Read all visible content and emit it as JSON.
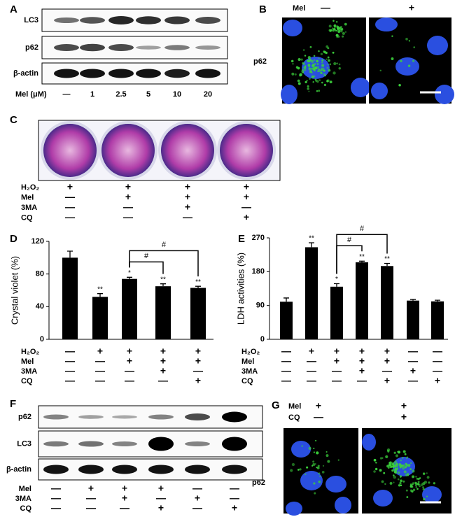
{
  "panel_labels": [
    "A",
    "B",
    "C",
    "D",
    "E",
    "F",
    "G"
  ],
  "panel_a": {
    "blots": [
      "LC3",
      "p62",
      "β-actin"
    ],
    "treatment": "Mel (μM)",
    "doses": [
      "—",
      "1",
      "2.5",
      "5",
      "10",
      "20"
    ]
  },
  "panel_b": {
    "treatment": "Mel",
    "signs": [
      "—",
      "+"
    ],
    "stain": "p62"
  },
  "panel_c": {
    "treatments": [
      {
        "name": "H₂O₂",
        "signs": [
          "+",
          "+",
          "+",
          "+"
        ]
      },
      {
        "name": "Mel",
        "signs": [
          "—",
          "+",
          "+",
          "+"
        ]
      },
      {
        "name": "3MA",
        "signs": [
          "—",
          "—",
          "+",
          "—"
        ]
      },
      {
        "name": "CQ",
        "signs": [
          "—",
          "—",
          "—",
          "+"
        ]
      }
    ]
  },
  "chart_data": [
    {
      "type": "bar",
      "y_label": "Crystal violet (%)",
      "color": "#000000",
      "values": [
        100,
        52,
        74,
        65,
        63
      ],
      "errors": [
        8,
        4,
        2,
        3,
        2
      ],
      "significance": [
        null,
        "**",
        "*",
        "**",
        "**"
      ],
      "brackets": [
        {
          "label": "#",
          "bars": [
            2,
            3
          ]
        },
        {
          "label": "#",
          "bars": [
            2,
            4
          ]
        }
      ],
      "ylim": [
        0,
        120
      ],
      "yticks": [
        0,
        40,
        80,
        120
      ],
      "treatments": [
        {
          "name": "H₂O₂",
          "signs": [
            "—",
            "+",
            "+",
            "+",
            "+"
          ]
        },
        {
          "name": "Mel",
          "signs": [
            "—",
            "—",
            "+",
            "+",
            "+"
          ]
        },
        {
          "name": "3MA",
          "signs": [
            "—",
            "—",
            "—",
            "+",
            "—"
          ]
        },
        {
          "name": "CQ",
          "signs": [
            "—",
            "—",
            "—",
            "—",
            "+"
          ]
        }
      ]
    },
    {
      "type": "bar",
      "y_label": "LDH activities (%)",
      "color": "#000000",
      "values": [
        100,
        245,
        140,
        205,
        195,
        103,
        101
      ],
      "errors": [
        10,
        12,
        8,
        3,
        7,
        3,
        3
      ],
      "significance": [
        null,
        "**",
        "*",
        "**",
        "**",
        null,
        null
      ],
      "brackets": [
        {
          "label": "#",
          "bars": [
            2,
            3
          ]
        },
        {
          "label": "#",
          "bars": [
            2,
            4
          ]
        }
      ],
      "ylim": [
        0,
        270
      ],
      "yticks": [
        0,
        90,
        180,
        270
      ],
      "treatments": [
        {
          "name": "H₂O₂",
          "signs": [
            "—",
            "+",
            "+",
            "+",
            "+",
            "—",
            "—"
          ]
        },
        {
          "name": "Mel",
          "signs": [
            "—",
            "—",
            "+",
            "+",
            "+",
            "—",
            "—"
          ]
        },
        {
          "name": "3MA",
          "signs": [
            "—",
            "—",
            "—",
            "+",
            "—",
            "+",
            "—"
          ]
        },
        {
          "name": "CQ",
          "signs": [
            "—",
            "—",
            "—",
            "—",
            "+",
            "—",
            "+"
          ]
        }
      ]
    }
  ],
  "panel_f": {
    "blots": [
      "p62",
      "LC3",
      "β-actin"
    ],
    "treatments": [
      {
        "name": "Mel",
        "signs": [
          "—",
          "+",
          "+",
          "+",
          "—",
          "—"
        ]
      },
      {
        "name": "3MA",
        "signs": [
          "—",
          "—",
          "+",
          "—",
          "+",
          "—"
        ]
      },
      {
        "name": "CQ",
        "signs": [
          "—",
          "—",
          "—",
          "+",
          "—",
          "+"
        ]
      }
    ]
  },
  "panel_g": {
    "treatments": [
      {
        "name": "Mel",
        "signs": [
          "+",
          "+"
        ]
      },
      {
        "name": "CQ",
        "signs": [
          "—",
          "+"
        ]
      }
    ],
    "stain": "p62"
  }
}
